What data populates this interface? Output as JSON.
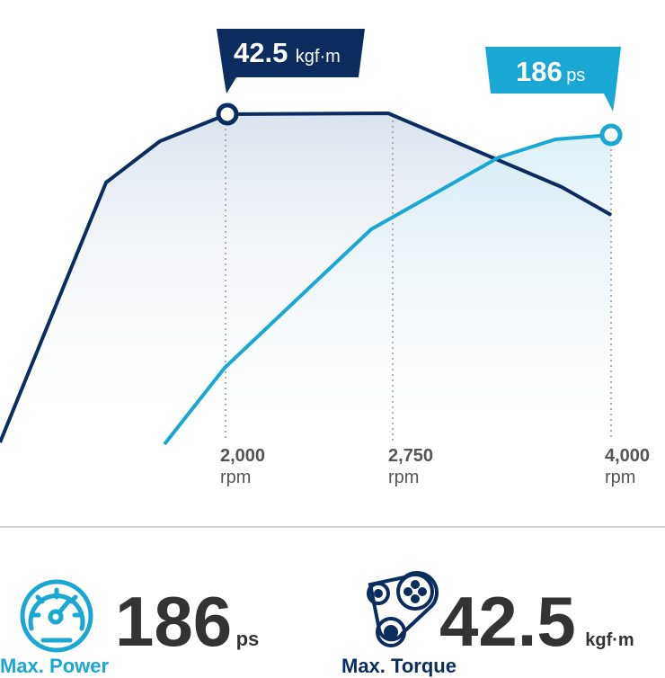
{
  "chart": {
    "torque_callout": {
      "value": "42.5",
      "unit": "kgf·m"
    },
    "power_callout": {
      "value": "186",
      "unit": "ps"
    },
    "rpm_ticks": [
      {
        "value": "2,000",
        "unit": "rpm"
      },
      {
        "value": "2,750",
        "unit": "rpm"
      },
      {
        "value": "4,000",
        "unit": "rpm"
      }
    ]
  },
  "specs": [
    {
      "label": "Max. Power",
      "value": "186",
      "unit": "ps"
    },
    {
      "label": "Max. Torque",
      "value": "42.5",
      "unit": "kgf·m"
    }
  ]
}
